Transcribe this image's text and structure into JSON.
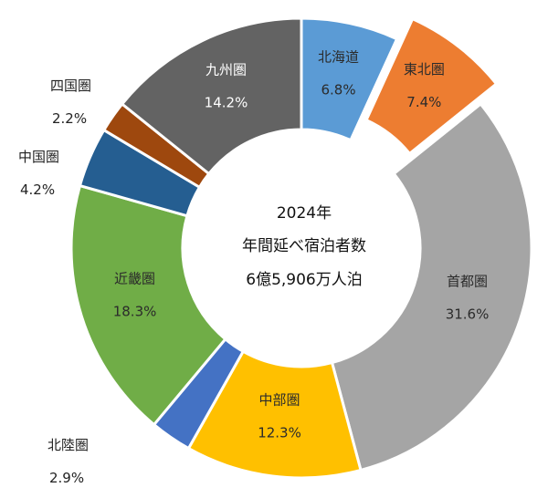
{
  "chart_data": {
    "type": "donut",
    "center_text": [
      "2024年",
      "年間延べ宿泊者数",
      "6億5,906万人泊"
    ],
    "unit": "%",
    "slices": [
      {
        "name": "北海道",
        "value": 6.8,
        "label": "6.8%",
        "color": "#5B9BD5",
        "exploded": false,
        "label_color": "#2b2b2b",
        "outside": false
      },
      {
        "name": "東北圏",
        "value": 7.4,
        "label": "7.4%",
        "color": "#ED7D31",
        "exploded": true,
        "label_color": "#2b2b2b",
        "outside": false
      },
      {
        "name": "首都圏",
        "value": 31.6,
        "label": "31.6%",
        "color": "#A5A5A5",
        "exploded": false,
        "label_color": "#2b2b2b",
        "outside": false
      },
      {
        "name": "中部圏",
        "value": 12.3,
        "label": "12.3%",
        "color": "#FFC000",
        "exploded": false,
        "label_color": "#2b2b2b",
        "outside": false
      },
      {
        "name": "北陸圏",
        "value": 2.9,
        "label": "2.9%",
        "color": "#4472C4",
        "exploded": false,
        "label_color": "#2b2b2b",
        "outside": true
      },
      {
        "name": "近畿圏",
        "value": 18.3,
        "label": "18.3%",
        "color": "#70AD47",
        "exploded": false,
        "label_color": "#2b2b2b",
        "outside": false
      },
      {
        "name": "中国圏",
        "value": 4.2,
        "label": "4.2%",
        "color": "#255E91",
        "exploded": false,
        "label_color": "#2b2b2b",
        "outside": true
      },
      {
        "name": "四国圏",
        "value": 2.2,
        "label": "2.2%",
        "color": "#9E480E",
        "exploded": false,
        "label_color": "#2b2b2b",
        "outside": true
      },
      {
        "name": "九州圏",
        "value": 14.2,
        "label": "14.2%",
        "color": "#636363",
        "exploded": false,
        "label_color": "#ffffff",
        "outside": false
      }
    ]
  }
}
